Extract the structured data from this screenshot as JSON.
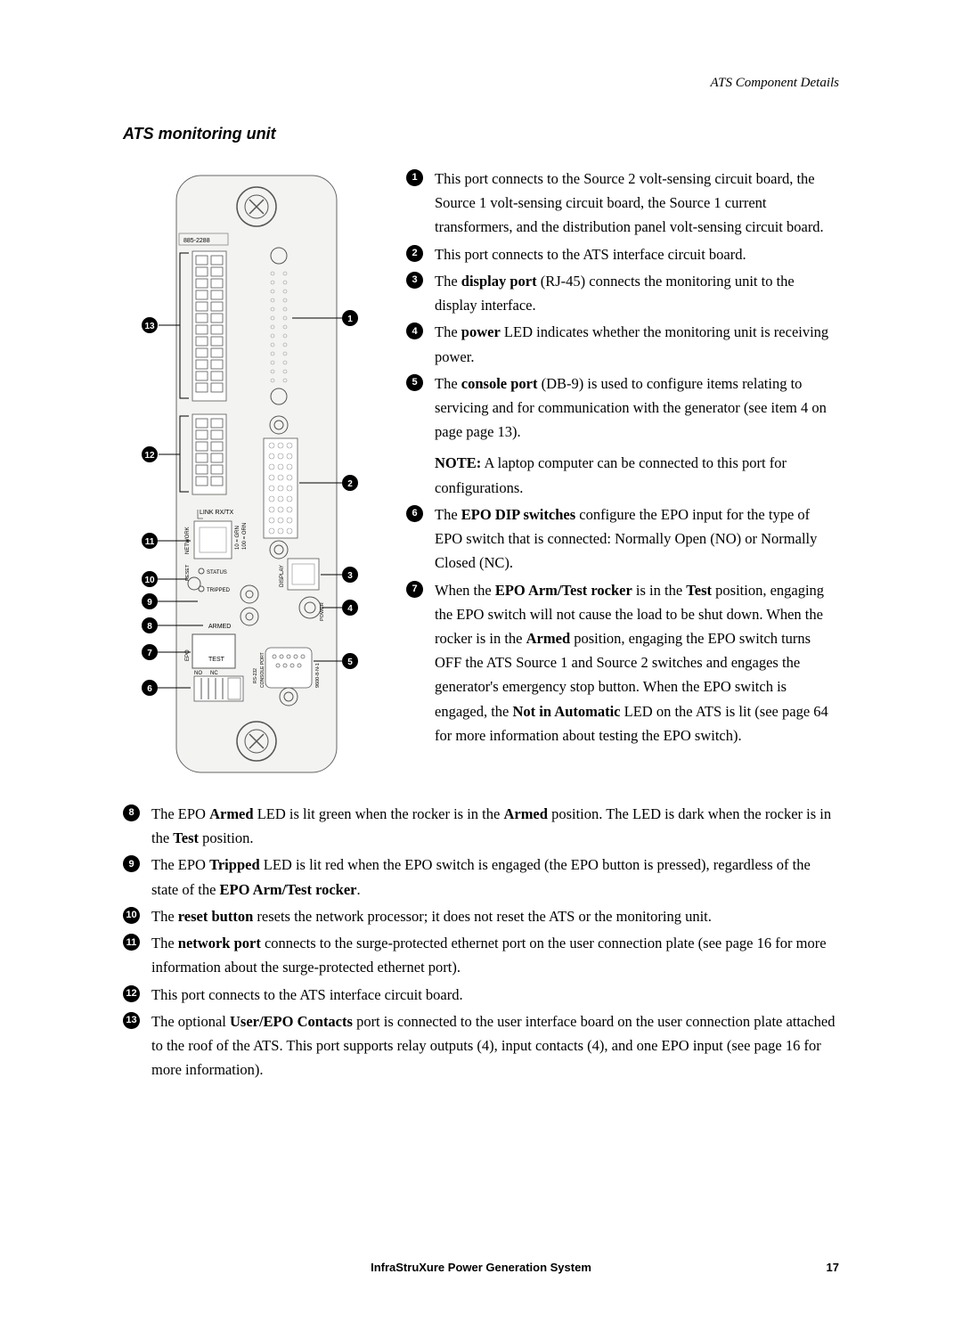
{
  "header": {
    "right": "ATS Component Details"
  },
  "section_title": "ATS monitoring unit",
  "diagram": {
    "board_label": "885-2288",
    "link_label": "LINK RX/TX",
    "net_label": "NETWORK",
    "status_label": "STATUS",
    "reset_label": "RESET",
    "tripped_label": "TRIPPED",
    "display_label": "DISPLAY",
    "armed_label": "ARMED",
    "test_label": "TEST",
    "epo_label": "EPO",
    "no_label": "NO",
    "nc_label": "NC",
    "console_label": "CONSOLE PORT",
    "rs232_label": "RS-232",
    "baud_label": "9600-8-N-1",
    "power_label": "POWER",
    "grn_label": "10 = GRN",
    "orn_label": "100 = ORN",
    "bg_color": "#f3f3f1",
    "line_color": "#333333"
  },
  "items_top": [
    {
      "n": "1",
      "html": "This port connects to the Source 2 volt-sensing circuit board, the Source 1 volt-sensing circuit board, the Source 1 current transformers, and the distribution panel volt-sensing circuit board."
    },
    {
      "n": "2",
      "html": "This port connects to the ATS interface circuit board."
    },
    {
      "n": "3",
      "html": "The <b>display port</b> (RJ-45) connects the monitoring unit to the display interface."
    },
    {
      "n": "4",
      "html": "The <b>power</b> LED indicates whether the monitoring unit is receiving power."
    },
    {
      "n": "5",
      "html": "The <b>console port</b> (DB-9) is used to configure items relating to servicing and for communication with the generator (see item 4 on page page 13)."
    }
  ],
  "note": {
    "label": "NOTE:",
    "text": " A laptop computer can be connected to this port for configurations."
  },
  "items_top2": [
    {
      "n": "6",
      "html": "The <b>EPO DIP switches</b> configure the EPO input for the type of EPO switch that is connected: Normally Open (NO) or Normally Closed (NC)."
    },
    {
      "n": "7",
      "html": "When the <b>EPO Arm/Test rocker</b> is in the <b>Test</b> position, engaging the EPO switch will not cause the load to be shut down. When the rocker is in the <b>Armed</b> position, engaging the EPO switch turns OFF the ATS Source 1 and Source 2 switches and engages the generator's emergency stop button. When the EPO switch is engaged, the <b>Not in Automatic</b> LED on the ATS is lit (see page 64 for more information about testing the EPO switch)."
    }
  ],
  "items_bottom": [
    {
      "n": "8",
      "html": "The EPO <b>Armed</b> LED is lit green when the rocker is in the <b>Armed</b> position. The LED is dark when the rocker is in the <b>Test</b> position."
    },
    {
      "n": "9",
      "html": "The EPO <b>Tripped</b> LED is lit red when the EPO switch is engaged (the EPO button is pressed), regardless of the state of the <b>EPO Arm/Test rocker</b>."
    },
    {
      "n": "10",
      "html": "The <b>reset button</b> resets the network processor; it does not reset the ATS or the monitoring unit."
    },
    {
      "n": "11",
      "html": "The <b>network port</b> connects to the surge-protected ethernet port on the user connection plate (see page 16 for more information about the surge-protected ethernet port)."
    },
    {
      "n": "12",
      "html": "This port connects to the ATS interface circuit board."
    },
    {
      "n": "13",
      "html": "The optional <b>User/EPO Contacts</b> port is connected to the user interface board on the user connection plate attached to the roof of the ATS. This port supports relay outputs (4), input contacts (4), and one EPO input (see page 16 for more information)."
    }
  ],
  "footer": {
    "title": "InfraStruXure Power Generation System",
    "page": "17"
  }
}
